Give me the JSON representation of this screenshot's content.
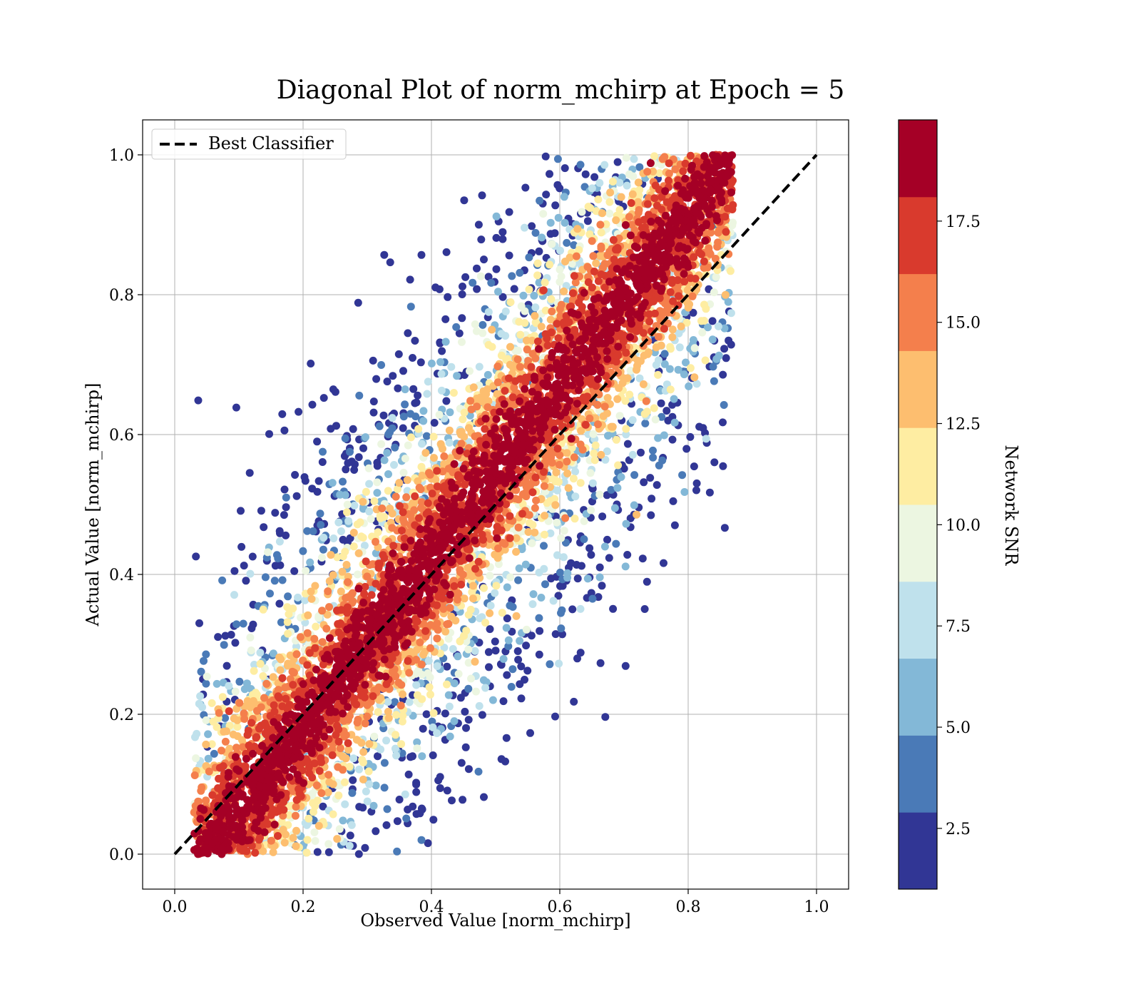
{
  "chart_data": {
    "type": "scatter",
    "title": "Diagonal Plot of norm_mchirp at Epoch = 5",
    "xlabel": "Observed Value [norm_mchirp]",
    "ylabel": "Actual Value [norm_mchirp]",
    "xlim": [
      -0.05,
      1.05
    ],
    "ylim": [
      -0.05,
      1.05
    ],
    "xticks": [
      0.0,
      0.2,
      0.4,
      0.6,
      0.8,
      1.0
    ],
    "yticks": [
      0.0,
      0.2,
      0.4,
      0.6,
      0.8,
      1.0
    ],
    "xtick_labels": [
      "0.0",
      "0.2",
      "0.4",
      "0.6",
      "0.8",
      "1.0"
    ],
    "ytick_labels": [
      "0.0",
      "0.2",
      "0.4",
      "0.6",
      "0.8",
      "1.0"
    ],
    "grid": true,
    "legend": {
      "position": "upper-left",
      "entries": [
        {
          "label": "Best Classifier",
          "style": "dashed",
          "color": "#000000"
        }
      ]
    },
    "reference_line": {
      "name": "Best Classifier",
      "x": [
        0.0,
        1.0
      ],
      "y": [
        0.0,
        1.0
      ],
      "style": "dashed"
    },
    "colorbar": {
      "label": "Network SNR",
      "colormap": "RdYlBu_r",
      "range": [
        1.0,
        20.0
      ],
      "ticks": [
        2.5,
        5.0,
        7.5,
        10.0,
        12.5,
        15.0,
        17.5
      ],
      "tick_labels": [
        "2.5",
        "5.0",
        "7.5",
        "10.0",
        "12.5",
        "15.0",
        "17.5"
      ],
      "bins": [
        {
          "color": "#313695"
        },
        {
          "color": "#4a7ab7"
        },
        {
          "color": "#83b8d7"
        },
        {
          "color": "#bfe1ec"
        },
        {
          "color": "#ecf6e1"
        },
        {
          "color": "#feeda2"
        },
        {
          "color": "#fdbe6f"
        },
        {
          "color": "#f47f4c"
        },
        {
          "color": "#d93a2d"
        },
        {
          "color": "#a50026"
        }
      ]
    },
    "point_distribution": {
      "description_of_density": "diagonal band of high-SNR points (dark red) from (0.05,0.0) to (0.87,1.0); lower-SNR points (blue/yellow) scattered above-left and below-right of band",
      "upper_left_low_snr_region": {
        "x_range": [
          0.12,
          0.65
        ],
        "y_range": [
          0.3,
          1.0
        ]
      },
      "lower_right_low_snr_region": {
        "x_range": [
          0.1,
          0.7
        ],
        "y_range": [
          0.0,
          0.3
        ]
      }
    }
  }
}
